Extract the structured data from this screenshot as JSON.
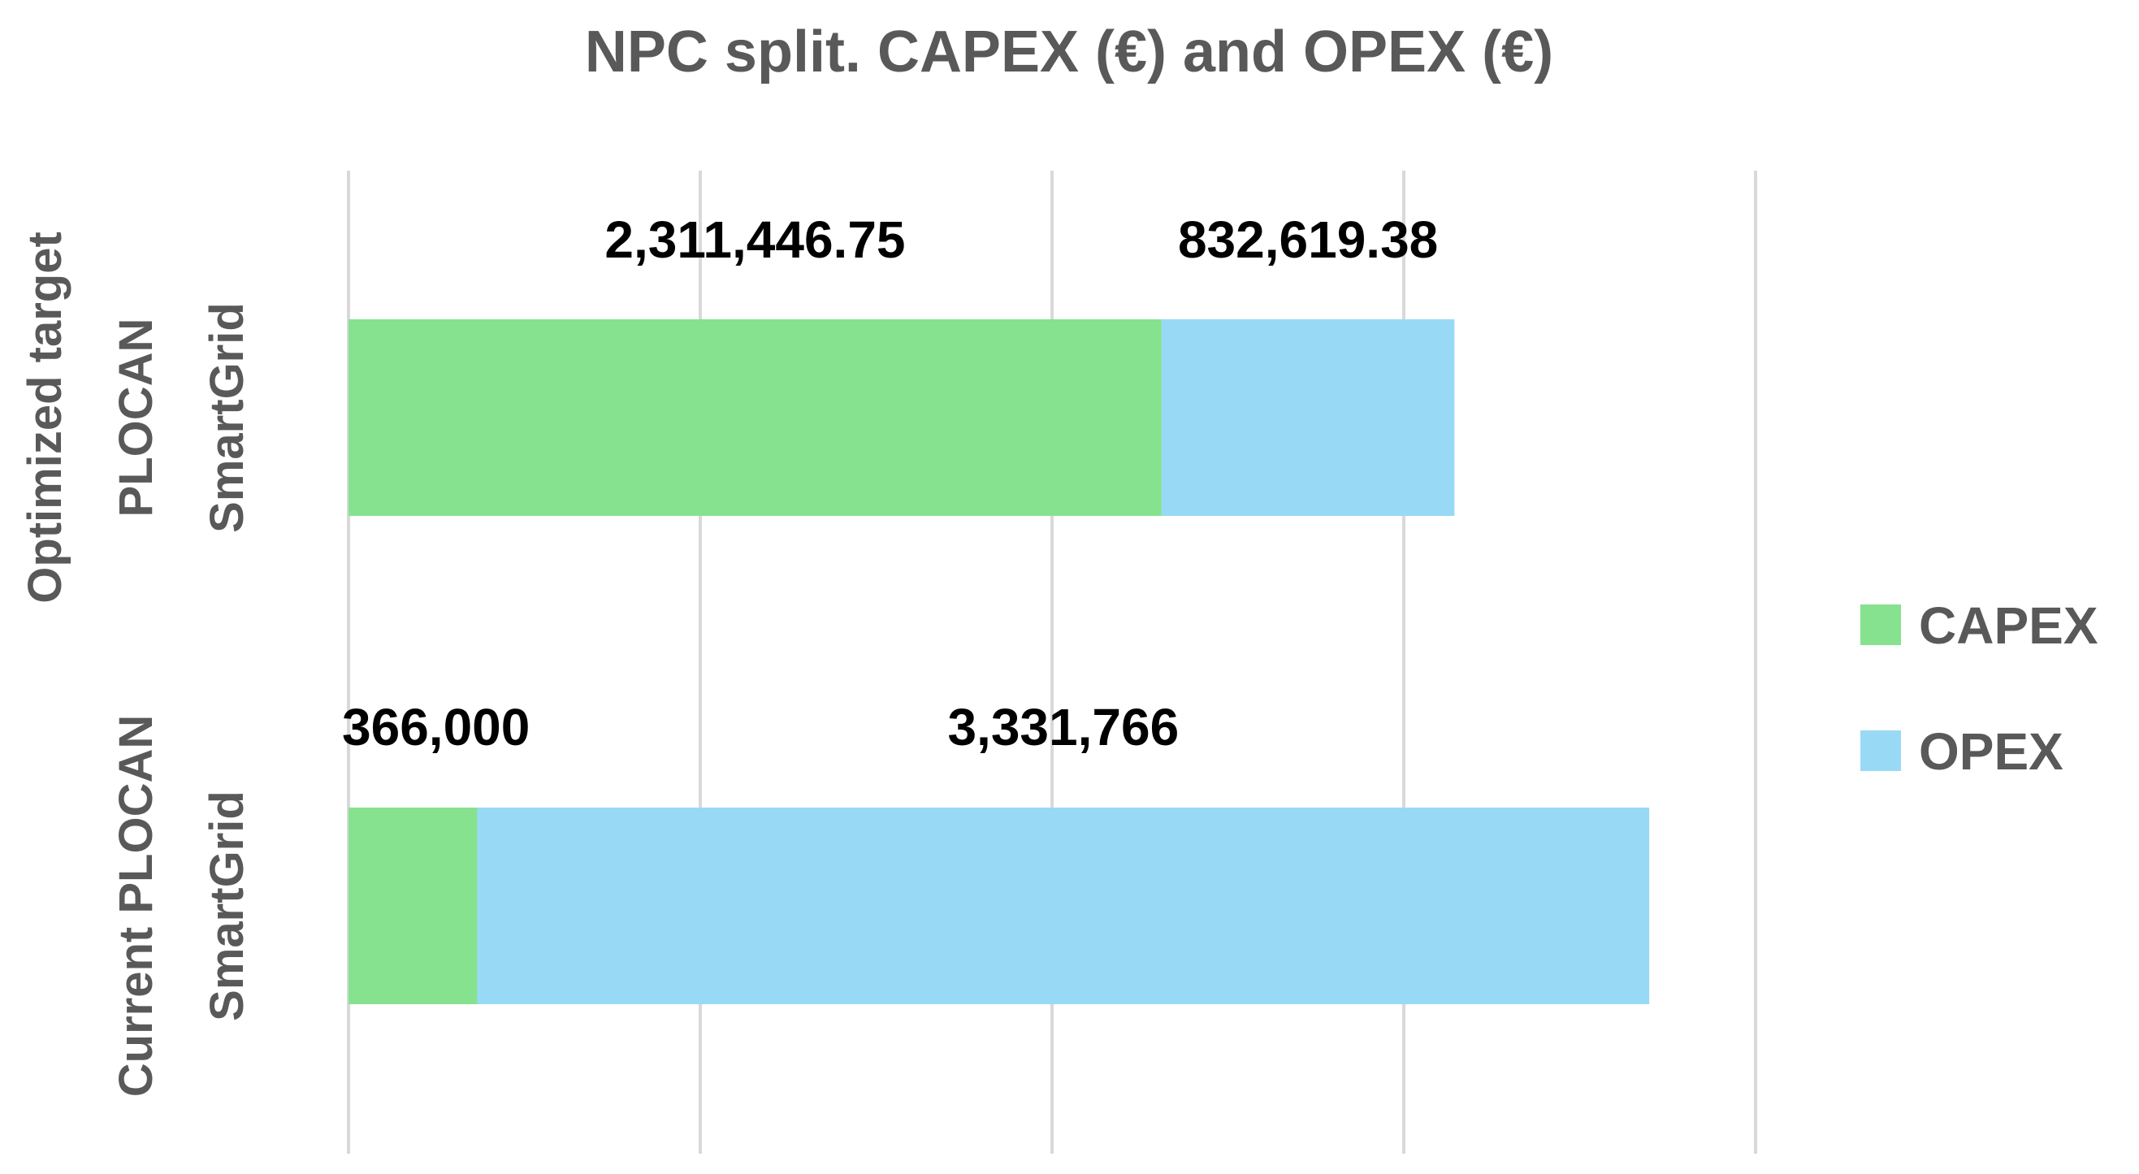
{
  "chart_data": {
    "type": "bar",
    "orientation": "horizontal",
    "stacked": true,
    "title": "NPC split. CAPEX (€) and OPEX (€)",
    "categories": [
      [
        "Optimized target",
        "PLOCAN",
        "SmartGrid"
      ],
      [
        "Current PLOCAN",
        "SmartGrid"
      ]
    ],
    "series": [
      {
        "name": "CAPEX",
        "color": "#86E28F",
        "values": [
          2311446.75,
          366000
        ],
        "labels": [
          "2,311,446.75",
          "366,000"
        ]
      },
      {
        "name": "OPEX",
        "color": "#98DAF6",
        "values": [
          832619.38,
          3331766
        ],
        "labels": [
          "832,619.38",
          "3,331,766"
        ]
      }
    ],
    "xlim": [
      0,
      4000000
    ],
    "grid": true,
    "legend_position": "right"
  }
}
